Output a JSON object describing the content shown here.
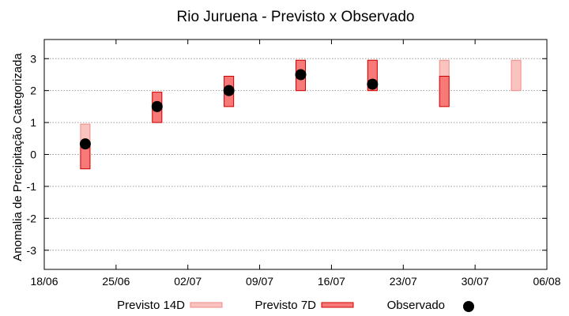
{
  "chart_data": {
    "type": "floating-bar",
    "title": "Rio Juruena - Previsto x Observado",
    "xlabel": "",
    "ylabel": "Anomalia de Precipitação Categorizada",
    "ylim": [
      -3.6,
      3.6
    ],
    "yticks": [
      "3",
      "2",
      "1",
      "0",
      "-1",
      "-2",
      "-3"
    ],
    "ytick_values": [
      3,
      2,
      1,
      0,
      -1,
      -2,
      -3
    ],
    "xlim": [
      "2021-06-18",
      "2021-07-06"
    ],
    "xticks": [
      "18/06",
      "25/06",
      "02/07",
      "09/07",
      "16/07",
      "23/07",
      "30/07",
      "06/08"
    ],
    "x_dates": [
      "2021-06-22",
      "2021-06-29",
      "2021-07-06",
      "2021-07-13",
      "2021-07-20",
      "2021-07-27",
      "2021-08-03"
    ],
    "grid": "horizontal-dotted",
    "legend_position": "bottom",
    "series": [
      {
        "name": "Previsto 14D",
        "color": "#f9c4c0",
        "edge": "#f08a84",
        "ranges": [
          [
            -0.45,
            0.95
          ],
          [
            1.0,
            1.95
          ],
          [
            1.5,
            2.45
          ],
          [
            2.0,
            2.95
          ],
          [
            2.0,
            2.95
          ],
          [
            1.5,
            2.95
          ],
          [
            2.0,
            2.95
          ]
        ]
      },
      {
        "name": "Previsto 7D",
        "color": "#f77a78",
        "edge": "#d00000",
        "ranges": [
          [
            -0.45,
            0.3
          ],
          [
            1.0,
            1.95
          ],
          [
            1.5,
            2.45
          ],
          [
            2.0,
            2.95
          ],
          [
            2.0,
            2.95
          ],
          [
            1.5,
            2.45
          ],
          null
        ]
      },
      {
        "name": "Observado",
        "color": "#000000",
        "values": [
          0.33,
          1.5,
          2.0,
          2.5,
          2.2,
          null,
          null
        ]
      }
    ]
  }
}
